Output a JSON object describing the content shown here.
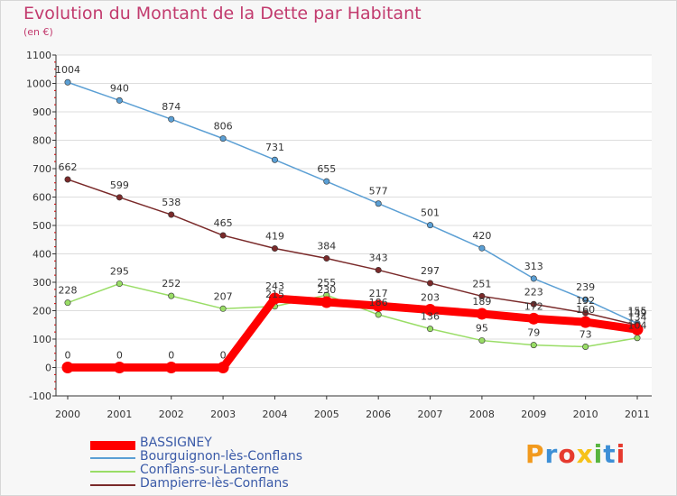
{
  "header": {
    "title": "Evolution du Montant de la Dette par Habitant",
    "unit": "(en €)"
  },
  "colors": {
    "title": "#c23b6e",
    "legend_text": "#3a5aa8",
    "grid": "#dddddd",
    "axis": "#333333"
  },
  "chart_data": {
    "type": "line",
    "title": "Evolution du Montant de la Dette par Habitant",
    "subtitle": "(en €)",
    "x": [
      "2000",
      "2001",
      "2002",
      "2003",
      "2004",
      "2005",
      "2006",
      "2007",
      "2008",
      "2009",
      "2010",
      "2011"
    ],
    "ylim": [
      -100,
      1100
    ],
    "yticks": [
      "-100",
      "0",
      "100",
      "200",
      "300",
      "400",
      "500",
      "600",
      "700",
      "800",
      "900",
      "1000",
      "1100"
    ],
    "grid": true,
    "legend_position": "bottom-left",
    "series": [
      {
        "name": "BASSIGNEY",
        "color": "#ff0000",
        "values": [
          0,
          0,
          0,
          0,
          243,
          230,
          217,
          203,
          189,
          172,
          160,
          134
        ],
        "labels": [
          "0",
          "0",
          "0",
          "0",
          "243",
          "230",
          "217",
          "203",
          "189",
          "172",
          "160",
          "134"
        ]
      },
      {
        "name": "Bourguignon-lès-Conflans",
        "color": "#5b9fd4",
        "values": [
          1004,
          940,
          874,
          806,
          731,
          655,
          577,
          501,
          420,
          313,
          239,
          155
        ],
        "labels": [
          "1004",
          "940",
          "874",
          "806",
          "731",
          "655",
          "577",
          "501",
          "420",
          "313",
          "239",
          "155"
        ]
      },
      {
        "name": "Conflans-sur-Lanterne",
        "color": "#99dd66",
        "values": [
          228,
          295,
          252,
          207,
          215,
          255,
          186,
          136,
          95,
          79,
          73,
          104
        ],
        "labels": [
          "228",
          "295",
          "252",
          "207",
          "215",
          "255",
          "186",
          "136",
          "95",
          "79",
          "73",
          "104"
        ]
      },
      {
        "name": "Dampierre-lès-Conflans",
        "color": "#7a2a2a",
        "values": [
          662,
          599,
          538,
          465,
          419,
          384,
          343,
          297,
          251,
          223,
          192,
          149
        ],
        "labels": [
          "662",
          "599",
          "538",
          "465",
          "419",
          "384",
          "343",
          "297",
          "251",
          "223",
          "192",
          "149"
        ]
      }
    ]
  },
  "legend": {
    "items": [
      {
        "label": "BASSIGNEY",
        "color": "#ff0000",
        "thickness": "thick"
      },
      {
        "label": "Bourguignon-lès-Conflans",
        "color": "#5b9fd4",
        "thickness": "thin"
      },
      {
        "label": "Conflans-sur-Lanterne",
        "color": "#99dd66",
        "thickness": "thin"
      },
      {
        "label": "Dampierre-lès-Conflans",
        "color": "#7a2a2a",
        "thickness": "thin"
      }
    ]
  },
  "logo": {
    "letters": [
      "P",
      "r",
      "o",
      "x",
      "i",
      "t",
      "i"
    ],
    "colors": [
      "#f29a1e",
      "#3d8fd6",
      "#e63a2e",
      "#f6c21a",
      "#58b53f",
      "#3d8fd6",
      "#e63a2e"
    ]
  }
}
